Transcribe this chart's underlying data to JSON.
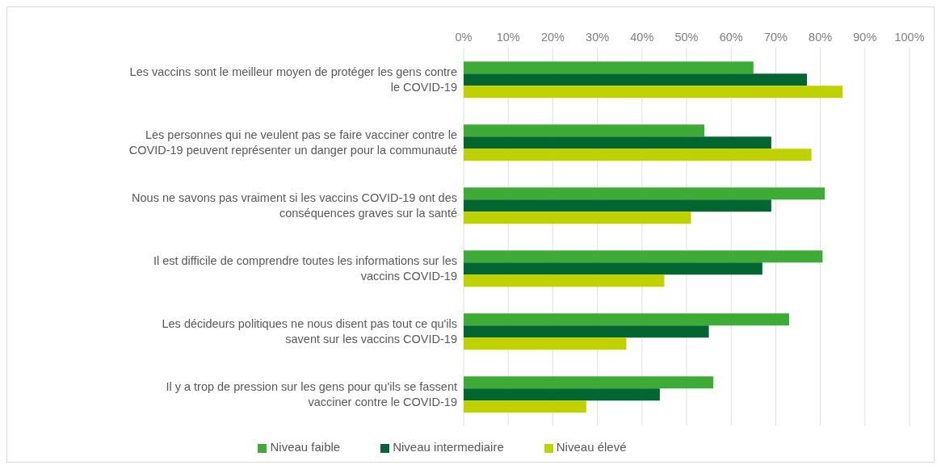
{
  "chart_data": {
    "type": "bar",
    "orientation": "horizontal",
    "categories": [
      "Les vaccins sont le meilleur moyen de protéger les gens contre le COVID-19",
      "Les personnes qui ne veulent pas se faire vacciner contre le COVID-19 peuvent représenter un danger pour la communauté",
      "Nous ne savons pas vraiment si les vaccins COVID-19 ont des conséquences graves sur la santé",
      "Il est difficile de comprendre toutes les informations sur les vaccins COVID-19",
      "Les décideurs politiques ne nous disent pas tout ce qu'ils savent sur les vaccins COVID-19",
      "Il y a trop de pression sur les gens pour qu'ils se fassent vacciner contre le COVID-19"
    ],
    "series": [
      {
        "name": "Niveau faible",
        "color": "#3dab35",
        "values": [
          65,
          54,
          81,
          80.5,
          73,
          56
        ]
      },
      {
        "name": "Niveau intermediaire",
        "color": "#03652f",
        "values": [
          77,
          69,
          69,
          67,
          55,
          44
        ]
      },
      {
        "name": "Niveau élevé",
        "color": "#bfd200",
        "values": [
          85,
          78,
          51,
          45,
          36.5,
          27.5
        ]
      }
    ],
    "xlim": [
      0,
      100
    ],
    "xticks": [
      {
        "value": 0,
        "label": "0%"
      },
      {
        "value": 10,
        "label": "10%"
      },
      {
        "value": 20,
        "label": "20%"
      },
      {
        "value": 30,
        "label": "30%"
      },
      {
        "value": 40,
        "label": "40%"
      },
      {
        "value": 50,
        "label": "50%"
      },
      {
        "value": 60,
        "label": "60%"
      },
      {
        "value": 70,
        "label": "70%"
      },
      {
        "value": 80,
        "label": "80%"
      },
      {
        "value": 90,
        "label": "90%"
      },
      {
        "value": 100,
        "label": "100%"
      }
    ],
    "grid": "x",
    "legend": "bottom"
  }
}
